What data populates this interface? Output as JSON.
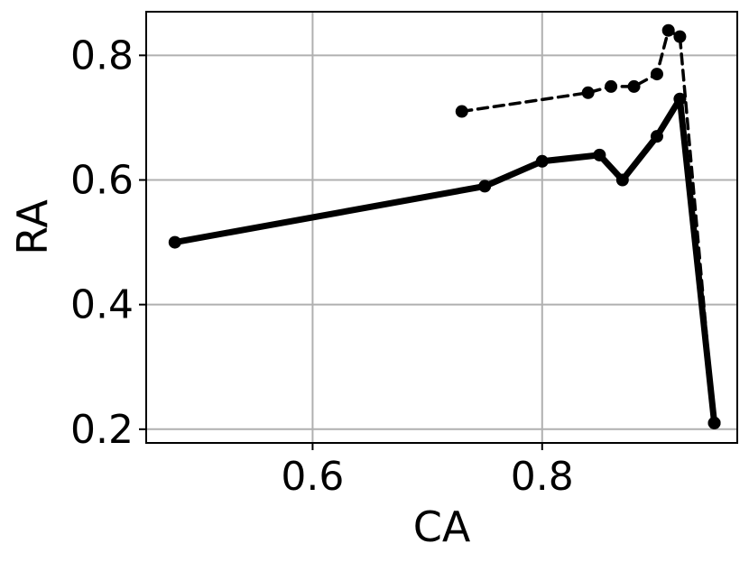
{
  "chart_data": {
    "type": "line",
    "xlabel": "CA",
    "ylabel": "RA",
    "xlim": [
      0.455,
      0.97
    ],
    "ylim": [
      0.178,
      0.87
    ],
    "x_ticks": [
      0.6,
      0.8
    ],
    "x_tick_labels": [
      "0.6",
      "0.8"
    ],
    "y_ticks": [
      0.2,
      0.4,
      0.6,
      0.8
    ],
    "y_tick_labels": [
      "0.2",
      "0.4",
      "0.6",
      "0.8"
    ],
    "grid": true,
    "series": [
      {
        "style": "solid",
        "color": "#000000",
        "points": [
          {
            "x": 0.48,
            "y": 0.5
          },
          {
            "x": 0.75,
            "y": 0.59
          },
          {
            "x": 0.8,
            "y": 0.63
          },
          {
            "x": 0.85,
            "y": 0.64
          },
          {
            "x": 0.87,
            "y": 0.6
          },
          {
            "x": 0.9,
            "y": 0.67
          },
          {
            "x": 0.92,
            "y": 0.73
          },
          {
            "x": 0.95,
            "y": 0.21
          }
        ]
      },
      {
        "style": "dashed",
        "color": "#000000",
        "points": [
          {
            "x": 0.73,
            "y": 0.71
          },
          {
            "x": 0.84,
            "y": 0.74
          },
          {
            "x": 0.86,
            "y": 0.75
          },
          {
            "x": 0.88,
            "y": 0.75
          },
          {
            "x": 0.9,
            "y": 0.77
          },
          {
            "x": 0.91,
            "y": 0.84
          },
          {
            "x": 0.92,
            "y": 0.83
          },
          {
            "x": 0.95,
            "y": 0.21
          }
        ]
      }
    ]
  }
}
